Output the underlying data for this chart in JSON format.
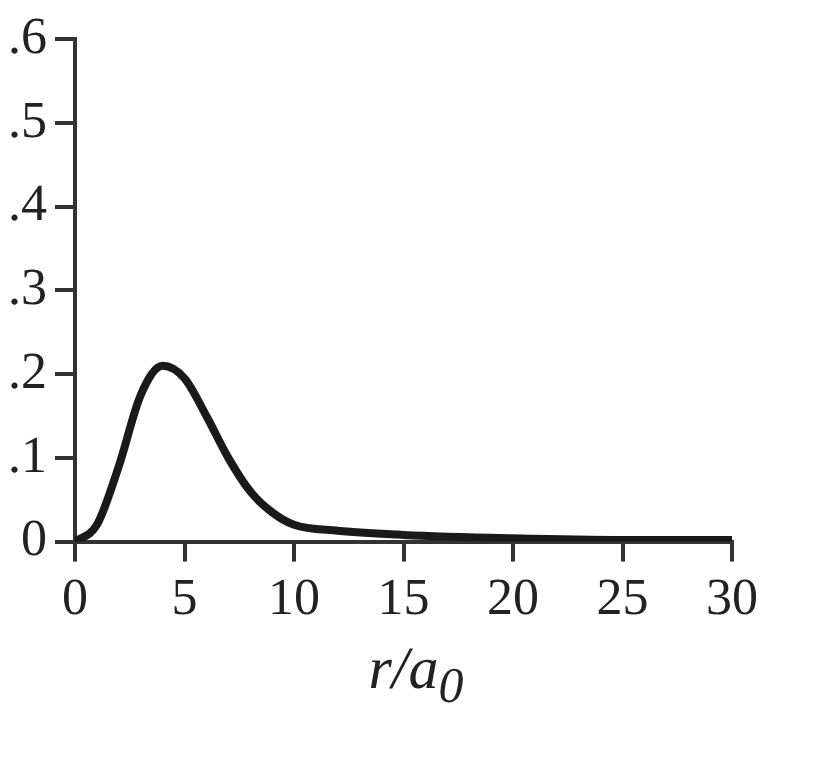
{
  "chart_data": {
    "type": "line",
    "xlabel": "r/a$_{0}$",
    "x": [
      0,
      1,
      2,
      3,
      4,
      5,
      6,
      7,
      8,
      9,
      10,
      12,
      15,
      20,
      25,
      30
    ],
    "series": [
      {
        "color": "#1a1a1a",
        "values": [
          0,
          0.02,
          0.09,
          0.175,
          0.21,
          0.195,
          0.15,
          0.1,
          0.06,
          0.035,
          0.02,
          0.013,
          0.008,
          0.004,
          0.002,
          0.002
        ]
      }
    ],
    "xlim": [
      0,
      30
    ],
    "xticks": [
      0,
      5,
      10,
      15,
      20,
      25,
      30
    ],
    "ylim": [
      0,
      0.6
    ],
    "yticks": [
      {
        "value": 0,
        "label": "0"
      },
      {
        "value": 0.1,
        "label": ".1"
      },
      {
        "value": 0.2,
        "label": ".2"
      },
      {
        "value": 0.3,
        "label": ".3"
      },
      {
        "value": 0.4,
        "label": ".4"
      },
      {
        "value": 0.5,
        "label": ".5"
      },
      {
        "value": 0.6,
        "label": ".6"
      }
    ],
    "grid": false,
    "legend": false,
    "marker": "none",
    "line_style": "solid"
  }
}
